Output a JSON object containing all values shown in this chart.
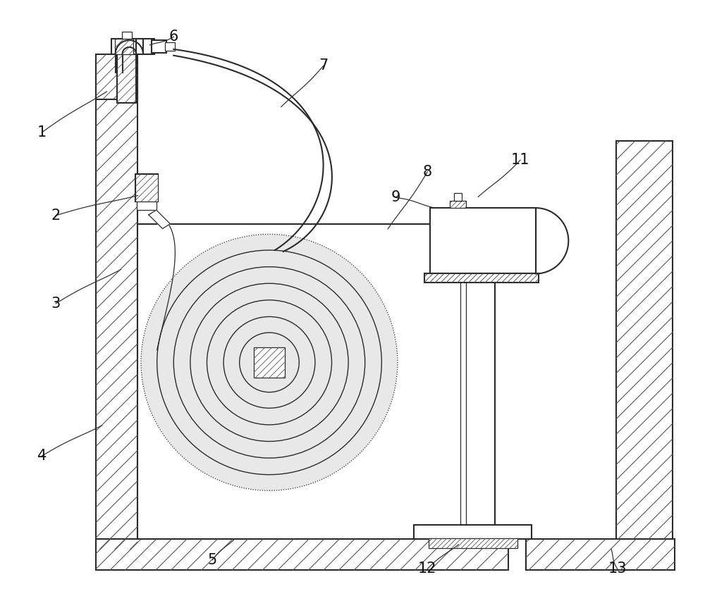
{
  "bg": "white",
  "lc": "#2a2a2a",
  "hc": "#555555",
  "lw_main": 1.5,
  "lw_thin": 0.9,
  "label_fs": 15,
  "figsize": [
    10.0,
    8.36
  ],
  "dpi": 100,
  "xlim": [
    0,
    10
  ],
  "ylim": [
    0,
    8.36
  ]
}
